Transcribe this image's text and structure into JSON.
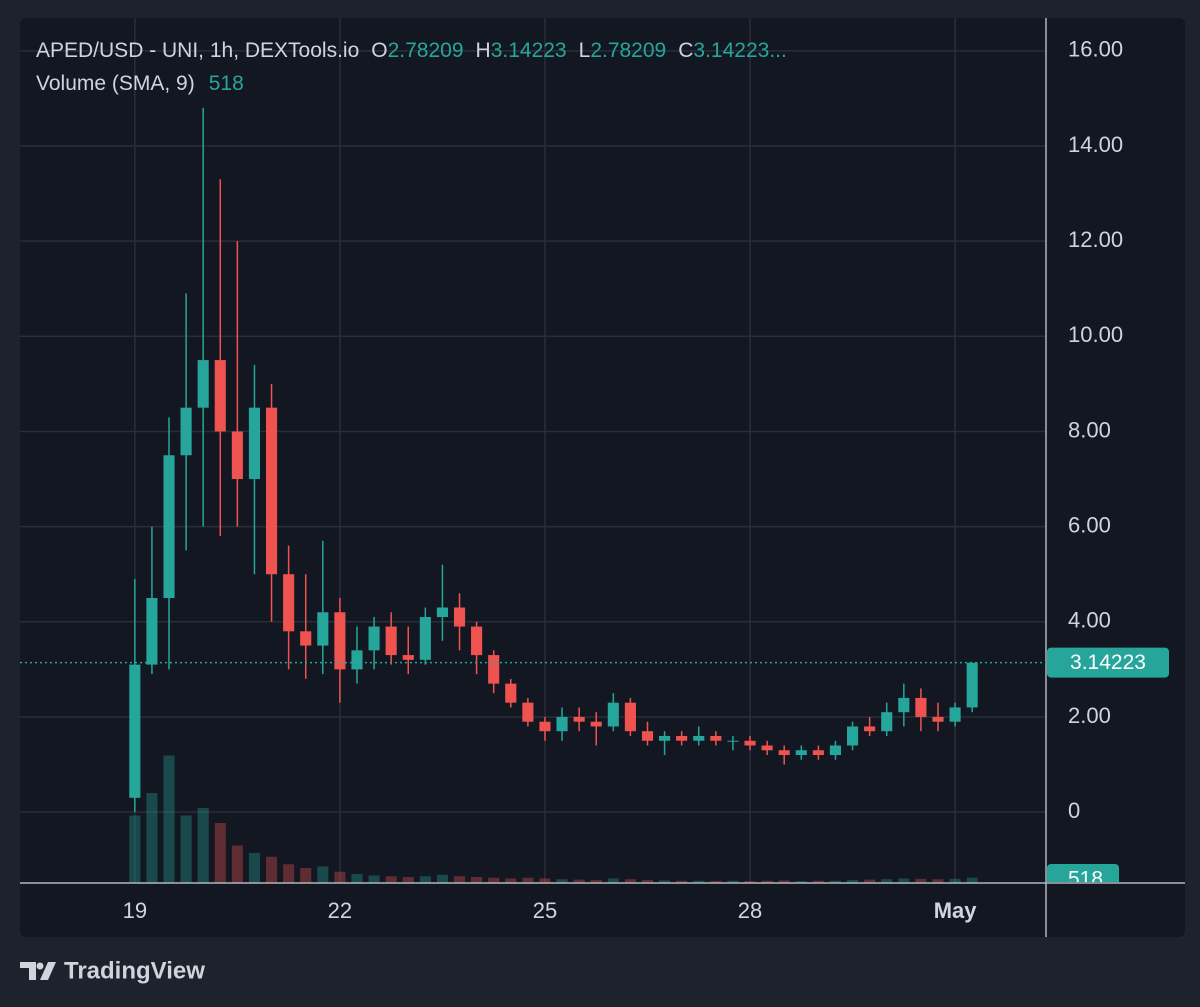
{
  "chart_data": {
    "type": "candlestick",
    "legend": {
      "symbol": "APED/USD - UNI, 1h, DEXTools.io",
      "open_key": "O",
      "open": 2.78209,
      "high_key": "H",
      "high": 3.14223,
      "low_key": "L",
      "low": 2.78209,
      "close_key": "C",
      "close": {
        "value": 3.14223,
        "label": "3.14223..."
      },
      "volume_name": "Volume (SMA, 9)",
      "volume_sma": 518
    },
    "last_price": 3.14223,
    "up_color": "#26a69a",
    "down_color": "#ef5350",
    "grid": true,
    "xlim": [
      17.32,
      32.33
    ],
    "xticks": [
      19,
      22,
      25,
      28,
      {
        "value": 31,
        "label": "May"
      }
    ],
    "ylim": [
      -1.49,
      16.69
    ],
    "yticks": [
      0,
      {
        "value": 2,
        "label": "2.00"
      },
      {
        "value": 4,
        "label": "4.00"
      },
      {
        "value": 6,
        "label": "6.00"
      },
      {
        "value": 8,
        "label": "8.00"
      },
      {
        "value": 10,
        "label": "10.00"
      },
      {
        "value": 12,
        "label": "12.00"
      },
      {
        "value": 14,
        "label": "14.00"
      },
      {
        "value": 16,
        "label": "16.00"
      }
    ],
    "vlim": [
      0,
      20000
    ],
    "x": [
      19,
      19.25,
      19.5,
      19.75,
      20,
      20.25,
      20.5,
      20.75,
      21,
      21.25,
      21.5,
      21.75,
      22,
      22.25,
      22.5,
      22.75,
      23,
      23.25,
      23.5,
      23.75,
      24,
      24.25,
      24.5,
      24.75,
      25,
      25.25,
      25.5,
      25.75,
      26,
      26.25,
      26.5,
      26.75,
      27,
      27.25,
      27.5,
      27.75,
      28,
      28.25,
      28.5,
      28.75,
      29,
      29.25,
      29.5,
      29.75,
      30,
      30.25,
      30.5,
      30.75,
      31,
      31.25
    ],
    "open": [
      0.3,
      3.1,
      4.5,
      7.5,
      8.5,
      9.5,
      8.0,
      7.0,
      8.5,
      5.0,
      3.8,
      3.5,
      4.2,
      3.0,
      3.4,
      3.9,
      3.3,
      3.2,
      4.1,
      4.3,
      3.9,
      3.3,
      2.7,
      2.3,
      1.9,
      1.7,
      2.0,
      1.9,
      1.8,
      2.3,
      1.7,
      1.5,
      1.6,
      1.5,
      1.6,
      1.5,
      1.5,
      1.4,
      1.3,
      1.2,
      1.3,
      1.2,
      1.4,
      1.8,
      1.7,
      2.1,
      2.4,
      2.0,
      1.9,
      2.2
    ],
    "high": [
      4.9,
      6.0,
      8.3,
      10.9,
      14.8,
      13.3,
      12.0,
      9.4,
      9.0,
      5.6,
      5.0,
      5.7,
      4.5,
      3.9,
      4.1,
      4.2,
      3.9,
      4.3,
      5.2,
      4.6,
      4.0,
      3.4,
      2.8,
      2.4,
      2.0,
      2.2,
      2.2,
      2.1,
      2.5,
      2.4,
      1.9,
      1.7,
      1.7,
      1.8,
      1.7,
      1.6,
      1.6,
      1.5,
      1.4,
      1.4,
      1.4,
      1.5,
      1.9,
      2.0,
      2.3,
      2.7,
      2.6,
      2.3,
      2.3,
      3.14
    ],
    "low": [
      0.0,
      2.9,
      3.0,
      5.5,
      6.0,
      5.8,
      6.0,
      5.0,
      4.0,
      3.0,
      2.8,
      2.9,
      2.3,
      2.7,
      3.0,
      3.1,
      2.9,
      3.1,
      3.6,
      3.4,
      2.9,
      2.5,
      2.2,
      1.8,
      1.5,
      1.5,
      1.7,
      1.4,
      1.7,
      1.6,
      1.4,
      1.2,
      1.4,
      1.4,
      1.4,
      1.3,
      1.3,
      1.2,
      1.0,
      1.1,
      1.1,
      1.1,
      1.3,
      1.6,
      1.6,
      1.8,
      1.7,
      1.7,
      1.8,
      2.1
    ],
    "close": [
      3.1,
      4.5,
      7.5,
      8.5,
      9.5,
      8.0,
      7.0,
      8.5,
      5.0,
      3.8,
      3.5,
      4.2,
      3.0,
      3.4,
      3.9,
      3.3,
      3.2,
      4.1,
      4.3,
      3.9,
      3.3,
      2.7,
      2.3,
      1.9,
      1.7,
      2.0,
      1.9,
      1.8,
      2.3,
      1.7,
      1.5,
      1.6,
      1.5,
      1.6,
      1.5,
      1.5,
      1.4,
      1.3,
      1.2,
      1.3,
      1.2,
      1.4,
      1.8,
      1.7,
      2.1,
      2.4,
      2.0,
      1.9,
      2.2,
      3.14
    ],
    "volume": [
      9000,
      12000,
      17000,
      9000,
      10000,
      8000,
      5000,
      4000,
      3500,
      2500,
      2000,
      2200,
      1500,
      1200,
      1000,
      900,
      800,
      900,
      1100,
      900,
      800,
      700,
      600,
      700,
      600,
      500,
      450,
      400,
      600,
      500,
      400,
      350,
      300,
      300,
      280,
      300,
      250,
      300,
      350,
      250,
      300,
      300,
      400,
      450,
      500,
      600,
      550,
      500,
      550,
      700
    ],
    "watermark": "TradingView"
  }
}
